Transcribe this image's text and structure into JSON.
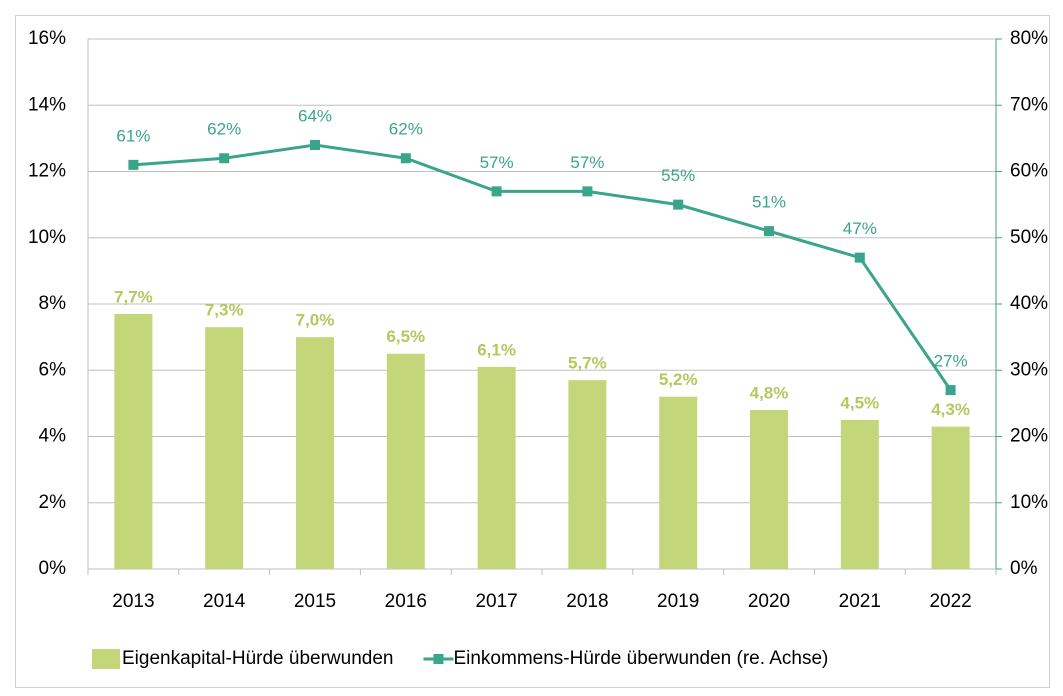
{
  "chart_data": {
    "type": "bar",
    "categories": [
      "2013",
      "2014",
      "2015",
      "2016",
      "2017",
      "2018",
      "2019",
      "2020",
      "2021",
      "2022"
    ],
    "series": [
      {
        "name": "Eigenkapital-Hürde überwunden",
        "type": "bar",
        "color": "#c3d67a",
        "label_color": "#b3c85f",
        "values": [
          7.7,
          7.3,
          7.0,
          6.5,
          6.1,
          5.7,
          5.2,
          4.8,
          4.5,
          4.3
        ],
        "value_labels": [
          "7,7%",
          "7,3%",
          "7,0%",
          "6,5%",
          "6,1%",
          "5,7%",
          "5,2%",
          "4,8%",
          "4,5%",
          "4,3%"
        ]
      },
      {
        "name": "Einkommens-Hürde überwunden (re. Achse)",
        "type": "line",
        "axis": "y2",
        "color": "#3aa58a",
        "values": [
          61,
          62,
          64,
          62,
          57,
          57,
          55,
          51,
          47,
          27
        ],
        "value_labels": [
          "61%",
          "62%",
          "64%",
          "62%",
          "57%",
          "57%",
          "55%",
          "51%",
          "47%",
          "27%"
        ]
      }
    ],
    "ylim": [
      0,
      16
    ],
    "yticks": [
      {
        "value": 0,
        "label": "0%"
      },
      {
        "value": 2,
        "label": "2%"
      },
      {
        "value": 4,
        "label": "4%"
      },
      {
        "value": 6,
        "label": "6%"
      },
      {
        "value": 8,
        "label": "8%"
      },
      {
        "value": 10,
        "label": "10%"
      },
      {
        "value": 12,
        "label": "12%"
      },
      {
        "value": 14,
        "label": "14%"
      },
      {
        "value": 16,
        "label": "16%"
      }
    ],
    "y2lim": [
      0,
      80
    ],
    "y2ticks": [
      {
        "value": 0,
        "label": "0%"
      },
      {
        "value": 10,
        "label": "10%"
      },
      {
        "value": 20,
        "label": "20%"
      },
      {
        "value": 30,
        "label": "30%"
      },
      {
        "value": 40,
        "label": "40%"
      },
      {
        "value": 50,
        "label": "50%"
      },
      {
        "value": 60,
        "label": "60%"
      },
      {
        "value": 70,
        "label": "70%"
      },
      {
        "value": 80,
        "label": "80%"
      }
    ],
    "grid": true,
    "legend": "bottom"
  }
}
